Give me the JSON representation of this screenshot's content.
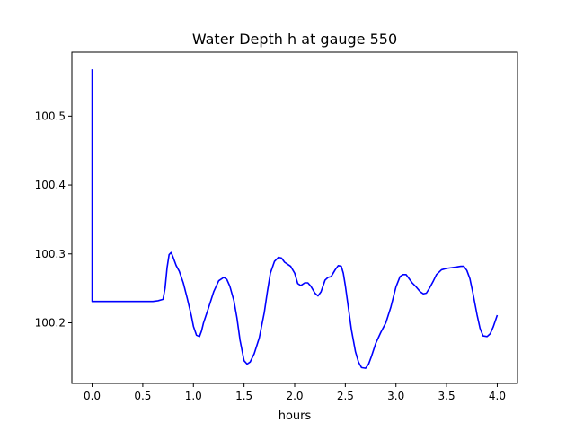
{
  "chart_data": {
    "type": "line",
    "title": "Water Depth h at gauge 550",
    "xlabel": "hours",
    "ylabel": "",
    "xlim": [
      -0.2,
      4.2
    ],
    "ylim": [
      100.112,
      100.593
    ],
    "x_ticks": [
      0.0,
      0.5,
      1.0,
      1.5,
      2.0,
      2.5,
      3.0,
      3.5,
      4.0
    ],
    "x_tick_labels": [
      "0.0",
      "0.5",
      "1.0",
      "1.5",
      "2.0",
      "2.5",
      "3.0",
      "3.5",
      "4.0"
    ],
    "y_ticks": [
      100.2,
      100.3,
      100.4,
      100.5
    ],
    "y_tick_labels": [
      "100.2",
      "100.3",
      "100.4",
      "100.5"
    ],
    "grid": false,
    "colors": {
      "line": "#0000ff",
      "axes": "#000000",
      "background": "#ffffff"
    },
    "series": [
      {
        "x": [
          0.0,
          0.0,
          0.0,
          0.1,
          0.2,
          0.3,
          0.4,
          0.5,
          0.55,
          0.6,
          0.65,
          0.7,
          0.72,
          0.74,
          0.76,
          0.78,
          0.8,
          0.83,
          0.86,
          0.9,
          0.94,
          0.98,
          1.0,
          1.03,
          1.06,
          1.08,
          1.1,
          1.15,
          1.2,
          1.25,
          1.3,
          1.33,
          1.36,
          1.4,
          1.43,
          1.46,
          1.5,
          1.53,
          1.56,
          1.6,
          1.65,
          1.7,
          1.73,
          1.76,
          1.8,
          1.84,
          1.87,
          1.9,
          1.93,
          1.96,
          2.0,
          2.03,
          2.06,
          2.1,
          2.13,
          2.16,
          2.2,
          2.23,
          2.26,
          2.3,
          2.33,
          2.36,
          2.4,
          2.43,
          2.46,
          2.48,
          2.5,
          2.53,
          2.56,
          2.6,
          2.63,
          2.66,
          2.7,
          2.73,
          2.76,
          2.8,
          2.85,
          2.9,
          2.95,
          3.0,
          3.04,
          3.07,
          3.1,
          3.13,
          3.16,
          3.2,
          3.24,
          3.27,
          3.3,
          3.33,
          3.37,
          3.4,
          3.45,
          3.5,
          3.55,
          3.6,
          3.64,
          3.67,
          3.7,
          3.73,
          3.76,
          3.8,
          3.83,
          3.86,
          3.9,
          3.93,
          3.96,
          4.0
        ],
        "y": [
          100.568,
          100.231,
          100.231,
          100.231,
          100.231,
          100.231,
          100.231,
          100.231,
          100.231,
          100.231,
          100.232,
          100.234,
          100.25,
          100.28,
          100.299,
          100.302,
          100.295,
          100.283,
          100.275,
          100.258,
          100.235,
          100.21,
          100.195,
          100.182,
          100.18,
          100.188,
          100.2,
          100.222,
          100.245,
          100.261,
          100.266,
          100.263,
          100.253,
          100.232,
          100.207,
          100.175,
          100.145,
          100.14,
          100.143,
          100.155,
          100.178,
          100.215,
          100.245,
          100.272,
          100.289,
          100.295,
          100.294,
          100.288,
          100.285,
          100.282,
          100.272,
          100.257,
          100.254,
          100.258,
          100.258,
          100.253,
          100.243,
          100.239,
          100.245,
          100.262,
          100.266,
          100.267,
          100.277,
          100.283,
          100.282,
          100.272,
          100.254,
          100.222,
          100.19,
          100.158,
          100.143,
          100.135,
          100.134,
          100.14,
          100.152,
          100.17,
          100.186,
          100.2,
          100.223,
          100.252,
          100.267,
          100.27,
          100.27,
          100.264,
          100.258,
          100.252,
          100.245,
          100.242,
          100.243,
          100.25,
          100.261,
          100.27,
          100.277,
          100.279,
          100.28,
          100.281,
          100.282,
          100.282,
          100.276,
          100.264,
          100.243,
          100.212,
          100.192,
          100.181,
          100.18,
          100.184,
          100.194,
          100.211
        ]
      }
    ]
  }
}
